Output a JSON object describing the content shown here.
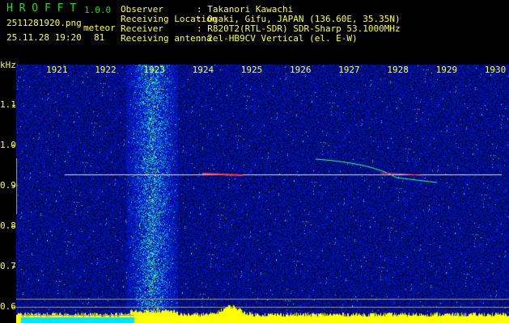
{
  "header": {
    "app_name": "H R O F F T",
    "version": "1.0.0",
    "filename": "2511281920.png",
    "datetime": "25.11.28 19:20",
    "count_label": "meteor",
    "count_value": "81"
  },
  "station": {
    "rows": [
      {
        "label": "Observer",
        "value": ": Takanori Kawachi"
      },
      {
        "label": "Receiving Location",
        "value": ": Ogaki, Gifu, JAPAN (136.60E, 35.35N)"
      },
      {
        "label": "Receiver",
        "value": ": R820T2(RTL-SDR) SDR-Sharp 53.1000MHz"
      },
      {
        "label": "Receiving antenna",
        "value": ": 2el-HB9CV Vertical (el. E-W)"
      }
    ]
  },
  "spectrogram": {
    "y_unit": "kHz",
    "y_ticks": [
      "1.1",
      "1.0",
      "0.9",
      "0.8",
      "0.7",
      "0.6"
    ],
    "x_ticks": [
      "1921",
      "1922",
      "1923",
      "1924",
      "1925",
      "1926",
      "1927",
      "1928",
      "1929",
      "1930"
    ],
    "colors": {
      "background": "#000000",
      "text": "#ffff33",
      "brand": "#22dd22",
      "noise": "#1020c0",
      "level_bar": "#ffff00",
      "level_fill": "#00e5ff"
    }
  }
}
